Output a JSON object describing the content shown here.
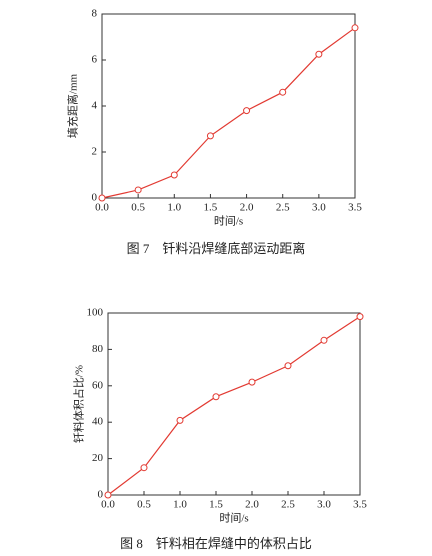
{
  "chart_data": [
    {
      "type": "line",
      "caption": "图 7　钎料沿焊缝底部运动距离",
      "xlabel": "时间/s",
      "ylabel": "填充距离/mm",
      "x": [
        0,
        0.5,
        1,
        1.5,
        2,
        2.5,
        3,
        3.5
      ],
      "series": [
        {
          "color": "#e23a32",
          "values": [
            0,
            0.35,
            1.0,
            2.7,
            3.8,
            4.6,
            6.25,
            7.4
          ]
        }
      ],
      "xlim": [
        0,
        3.5
      ],
      "ylim": [
        0,
        8
      ],
      "xticks": [
        {
          "value": 0,
          "label": "0.0"
        },
        0.5,
        {
          "value": 1,
          "label": "1.0"
        },
        1.5,
        {
          "value": 2,
          "label": "2.0"
        },
        2.5,
        {
          "value": 3,
          "label": "3.0"
        },
        3.5
      ],
      "yticks": [
        0,
        2,
        4,
        6,
        8
      ]
    },
    {
      "type": "line",
      "caption": "图 8　钎料相在焊缝中的体积占比",
      "xlabel": "时间/s",
      "ylabel": "钎料体积占比/%",
      "x": [
        0,
        0.5,
        1,
        1.5,
        2,
        2.5,
        3,
        3.5
      ],
      "series": [
        {
          "color": "#e23a32",
          "values": [
            0,
            15,
            41,
            54,
            62,
            71,
            85,
            98
          ]
        }
      ],
      "xlim": [
        0,
        3.5
      ],
      "ylim": [
        0,
        100
      ],
      "xticks": [
        {
          "value": 0,
          "label": "0.0"
        },
        0.5,
        {
          "value": 1,
          "label": "1.0"
        },
        1.5,
        {
          "value": 2,
          "label": "2.0"
        },
        2.5,
        {
          "value": 3,
          "label": "3.0"
        },
        3.5
      ],
      "yticks": [
        0,
        20,
        40,
        60,
        80,
        100
      ]
    }
  ]
}
